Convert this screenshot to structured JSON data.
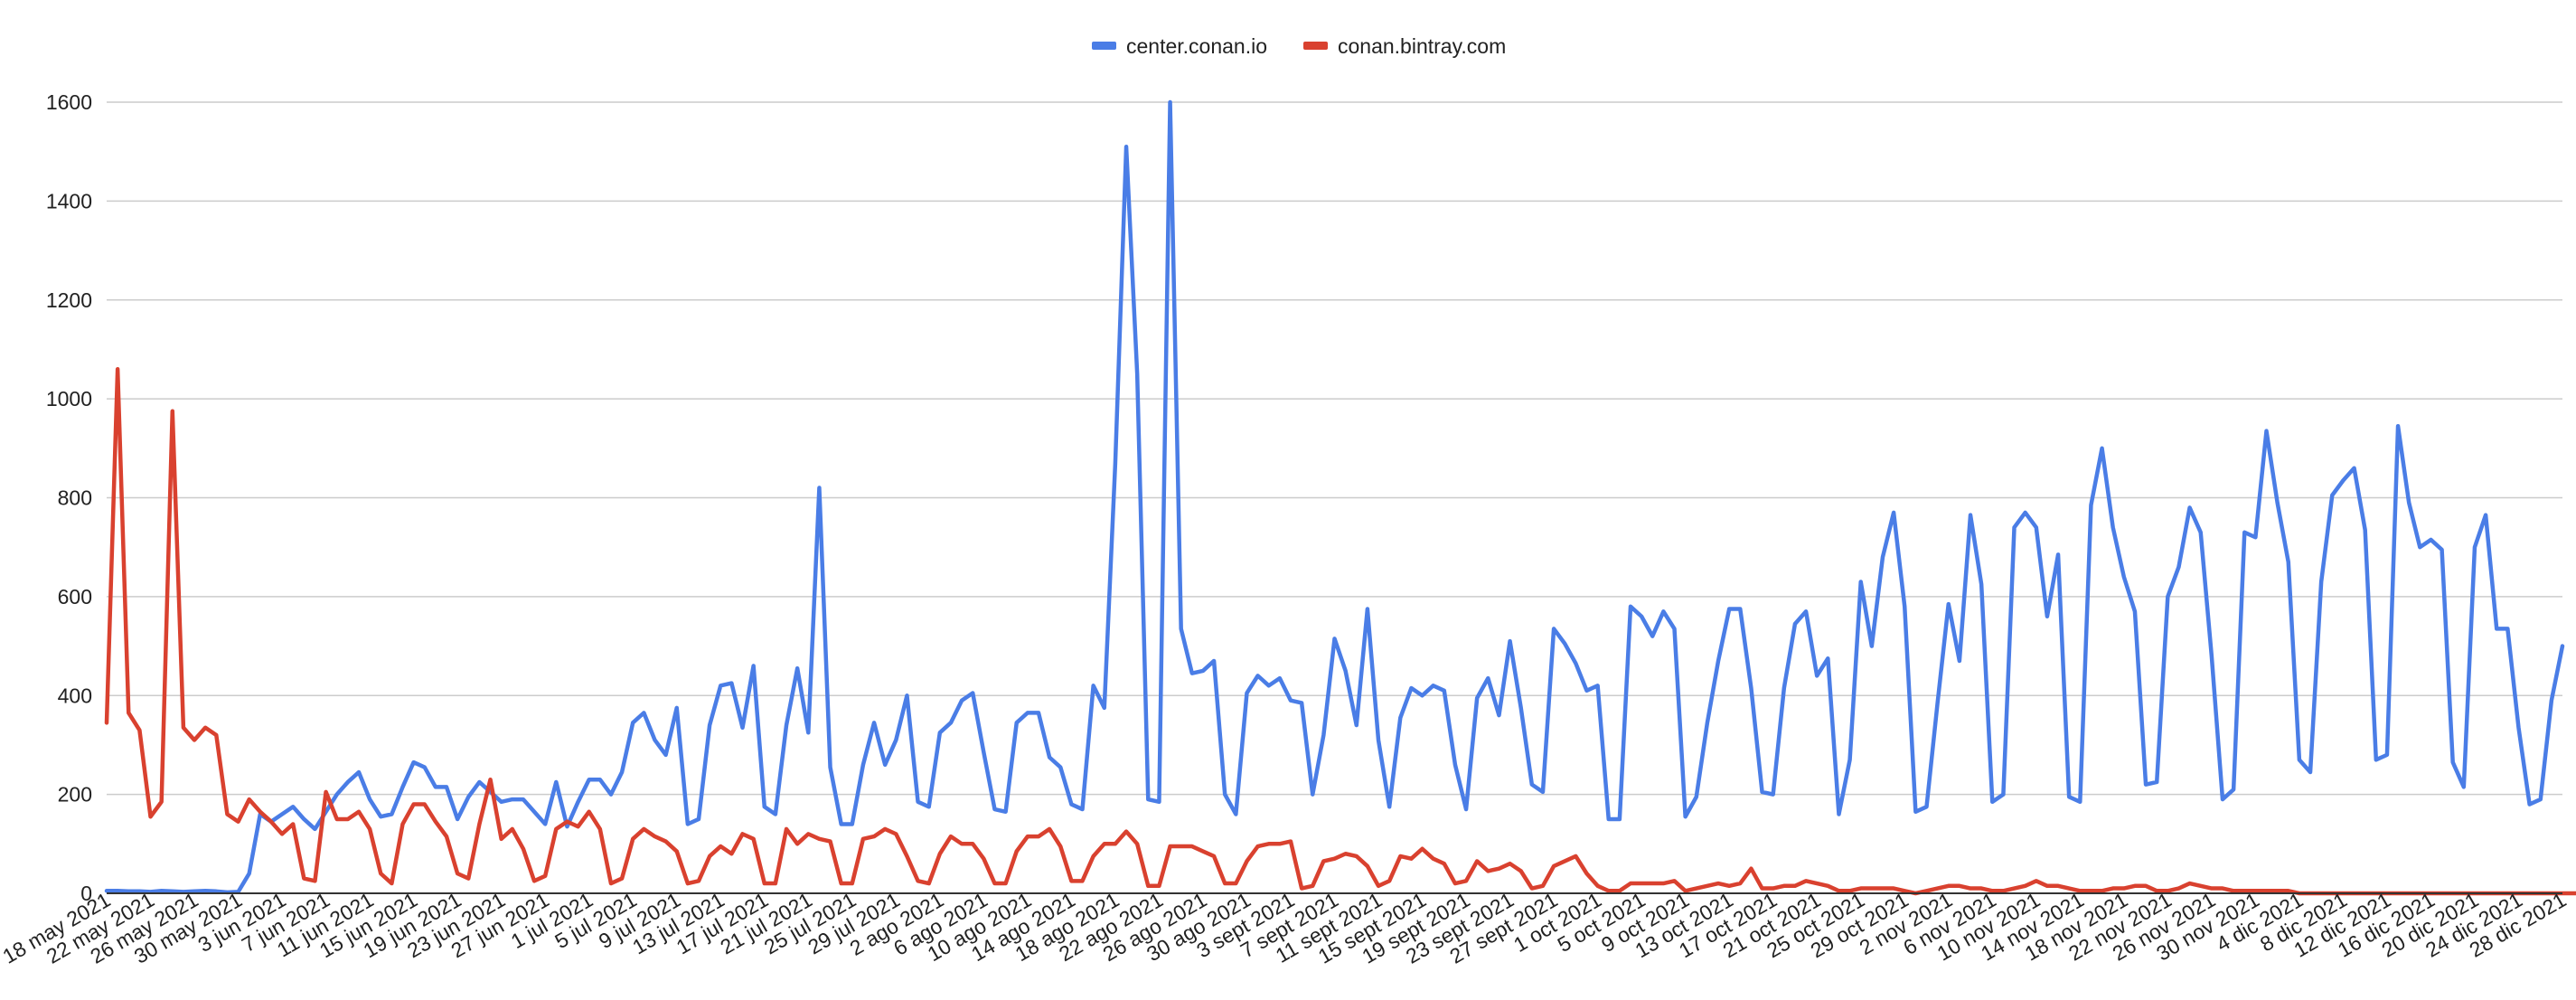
{
  "chart_data": {
    "type": "line",
    "title": "",
    "xlabel": "",
    "ylabel": "",
    "ylim": [
      0,
      1600
    ],
    "yticks": [
      0,
      200,
      400,
      600,
      800,
      1000,
      1200,
      1400,
      1600
    ],
    "grid": true,
    "legend_position": "top-center",
    "x_start": "18 may 2021",
    "x_end": "29 dic 2021",
    "x_tick_labels": [
      "18 may 2021",
      "22 may 2021",
      "26 may 2021",
      "30 may 2021",
      "3 jun 2021",
      "7 jun 2021",
      "11 jun 2021",
      "15 jun 2021",
      "19 jun 2021",
      "23 jun 2021",
      "27 jun 2021",
      "1 jul 2021",
      "5 jul 2021",
      "9 jul 2021",
      "13 jul 2021",
      "17 jul 2021",
      "21 jul 2021",
      "25 jul 2021",
      "29 jul 2021",
      "2 ago 2021",
      "6 ago 2021",
      "10 ago 2021",
      "14 ago 2021",
      "18 ago 2021",
      "22 ago 2021",
      "26 ago 2021",
      "30 ago 2021",
      "3 sept 2021",
      "7 sept 2021",
      "11 sept 2021",
      "15 sept 2021",
      "19 sept 2021",
      "23 sept 2021",
      "27 sept 2021",
      "1 oct 2021",
      "5 oct 2021",
      "9 oct 2021",
      "13 oct 2021",
      "17 oct 2021",
      "21 oct 2021",
      "25 oct 2021",
      "29 oct 2021",
      "2 nov 2021",
      "6 nov 2021",
      "10 nov 2021",
      "14 nov 2021",
      "18 nov 2021",
      "22 nov 2021",
      "26 nov 2021",
      "30 nov 2021",
      "4 dic 2021",
      "8 dic 2021",
      "12 dic 2021",
      "16 dic 2021",
      "20 dic 2021",
      "24 dic 2021",
      "28 dic 2021"
    ],
    "series": [
      {
        "name": "center.conan.io",
        "color": "#4a7de6",
        "values": [
          5,
          5,
          4,
          4,
          3,
          5,
          4,
          3,
          4,
          5,
          4,
          2,
          3,
          40,
          160,
          145,
          160,
          175,
          150,
          130,
          165,
          200,
          225,
          245,
          190,
          155,
          160,
          215,
          265,
          255,
          215,
          215,
          150,
          195,
          225,
          205,
          185,
          190,
          190,
          165,
          140,
          225,
          135,
          185,
          230,
          230,
          200,
          245,
          345,
          365,
          310,
          280,
          375,
          140,
          150,
          340,
          420,
          425,
          335,
          460,
          175,
          160,
          340,
          455,
          325,
          820,
          255,
          140,
          140,
          260,
          345,
          260,
          310,
          400,
          185,
          175,
          325,
          345,
          390,
          405,
          285,
          170,
          165,
          345,
          365,
          365,
          275,
          255,
          180,
          170,
          420,
          375,
          870,
          1510,
          1050,
          190,
          185,
          1600,
          535,
          445,
          450,
          470,
          200,
          160,
          405,
          440,
          420,
          435,
          390,
          385,
          200,
          320,
          515,
          450,
          340,
          575,
          310,
          175,
          355,
          415,
          400,
          420,
          410,
          260,
          170,
          395,
          435,
          360,
          510,
          375,
          220,
          205,
          535,
          505,
          465,
          410,
          420,
          150,
          150,
          580,
          560,
          520,
          570,
          535,
          155,
          195,
          345,
          470,
          575,
          575,
          415,
          205,
          200,
          415,
          545,
          570,
          440,
          475,
          160,
          270,
          630,
          500,
          680,
          770,
          580,
          165,
          175,
          385,
          585,
          470,
          765,
          625,
          185,
          200,
          740,
          770,
          740,
          560,
          685,
          195,
          185,
          785,
          900,
          740,
          640,
          570,
          220,
          225,
          600,
          660,
          780,
          730,
          480,
          190,
          210,
          730,
          720,
          935,
          790,
          670,
          270,
          245,
          630,
          805,
          835,
          860,
          735,
          270,
          280,
          945,
          790,
          700,
          715,
          695,
          265,
          215,
          700,
          765,
          535,
          535,
          335,
          180,
          190,
          390,
          500
        ]
      },
      {
        "name": "conan.bintray.com",
        "color": "#d9412f",
        "values": [
          345,
          1060,
          365,
          330,
          155,
          185,
          975,
          335,
          310,
          335,
          320,
          160,
          145,
          190,
          165,
          145,
          120,
          140,
          30,
          25,
          205,
          150,
          150,
          165,
          130,
          40,
          20,
          140,
          180,
          180,
          145,
          115,
          40,
          30,
          140,
          230,
          110,
          130,
          90,
          25,
          35,
          130,
          145,
          135,
          165,
          130,
          20,
          30,
          110,
          130,
          115,
          105,
          85,
          20,
          25,
          75,
          95,
          80,
          120,
          110,
          20,
          20,
          130,
          100,
          120,
          110,
          105,
          20,
          20,
          110,
          115,
          130,
          120,
          75,
          25,
          20,
          80,
          115,
          100,
          100,
          70,
          20,
          20,
          85,
          115,
          115,
          130,
          95,
          25,
          25,
          75,
          100,
          100,
          125,
          100,
          15,
          15,
          95,
          95,
          95,
          85,
          75,
          20,
          20,
          65,
          95,
          100,
          100,
          105,
          10,
          15,
          65,
          70,
          80,
          75,
          55,
          15,
          25,
          75,
          70,
          90,
          70,
          60,
          20,
          25,
          65,
          45,
          50,
          60,
          45,
          10,
          15,
          55,
          65,
          75,
          40,
          15,
          5,
          5,
          20,
          20,
          20,
          20,
          25,
          5,
          10,
          15,
          20,
          15,
          20,
          50,
          10,
          10,
          15,
          15,
          25,
          20,
          15,
          5,
          5,
          10,
          10,
          10,
          10,
          5,
          0,
          5,
          10,
          15,
          15,
          10,
          10,
          5,
          5,
          10,
          15,
          25,
          15,
          15,
          10,
          5,
          5,
          5,
          10,
          10,
          15,
          15,
          5,
          5,
          10,
          20,
          15,
          10,
          10,
          5,
          5,
          5,
          5,
          5,
          5,
          0,
          0,
          0,
          0,
          0,
          0,
          0,
          0,
          0,
          0,
          0,
          0,
          0,
          0,
          0,
          0,
          0,
          0,
          0,
          0,
          0,
          0,
          0,
          0,
          0,
          0,
          0,
          0,
          0,
          0,
          0,
          0,
          0,
          0,
          0
        ]
      }
    ]
  }
}
